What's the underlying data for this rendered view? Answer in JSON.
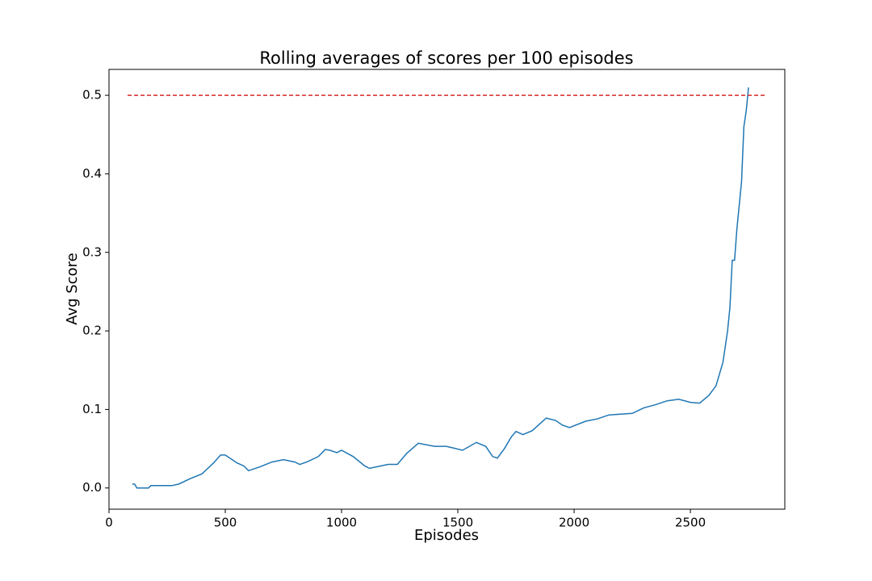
{
  "chart_data": {
    "type": "line",
    "title": "Rolling averages of scores per 100 episodes",
    "x_label": "Episodes",
    "y_label": "Avg Score",
    "xlim": [
      0,
      2906
    ],
    "ylim": [
      -0.027,
      0.533
    ],
    "xticks": [
      0,
      500,
      1000,
      1500,
      2000,
      2500
    ],
    "yticks": [
      {
        "value": 0,
        "label": "0.0"
      },
      0.1,
      0.2,
      0.3,
      0.4,
      0.5
    ],
    "grid": false,
    "series": [
      {
        "color": "#1f77b4",
        "linestyle": "solid",
        "x": [
          100,
          110,
          120,
          150,
          170,
          180,
          270,
          300,
          350,
          400,
          450,
          480,
          500,
          550,
          580,
          600,
          650,
          700,
          750,
          800,
          820,
          850,
          900,
          930,
          950,
          980,
          1000,
          1050,
          1100,
          1120,
          1200,
          1240,
          1280,
          1330,
          1400,
          1450,
          1480,
          1520,
          1580,
          1620,
          1650,
          1670,
          1700,
          1730,
          1750,
          1780,
          1820,
          1880,
          1920,
          1950,
          1980,
          2050,
          2100,
          2150,
          2200,
          2250,
          2300,
          2350,
          2400,
          2450,
          2500,
          2540,
          2580,
          2610,
          2640,
          2660,
          2670,
          2680,
          2690,
          2700,
          2710,
          2720,
          2730,
          2740,
          2750
        ],
        "values": [
          0.005,
          0.005,
          0.0,
          0.0,
          0.0,
          0.003,
          0.003,
          0.005,
          0.012,
          0.018,
          0.032,
          0.042,
          0.042,
          0.032,
          0.028,
          0.022,
          0.027,
          0.033,
          0.036,
          0.033,
          0.03,
          0.033,
          0.04,
          0.049,
          0.048,
          0.045,
          0.048,
          0.04,
          0.028,
          0.025,
          0.03,
          0.03,
          0.044,
          0.057,
          0.053,
          0.053,
          0.051,
          0.048,
          0.058,
          0.053,
          0.04,
          0.038,
          0.05,
          0.065,
          0.072,
          0.068,
          0.073,
          0.089,
          0.086,
          0.08,
          0.077,
          0.085,
          0.088,
          0.093,
          0.094,
          0.095,
          0.102,
          0.106,
          0.111,
          0.113,
          0.109,
          0.108,
          0.118,
          0.13,
          0.16,
          0.2,
          0.23,
          0.29,
          0.29,
          0.33,
          0.36,
          0.39,
          0.46,
          0.48,
          0.51
        ]
      },
      {
        "color": "#d62728",
        "linestyle": "dashed",
        "x": [
          80,
          2820
        ],
        "values": [
          0.5,
          0.5
        ]
      }
    ]
  }
}
